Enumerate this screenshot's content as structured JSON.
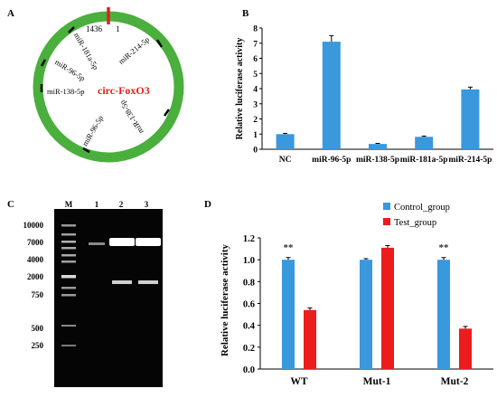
{
  "panels": {
    "a": {
      "letter": "A",
      "circle_label": "circ-FoxO3",
      "pos_start": "1",
      "pos_end": "1436",
      "sites": [
        "miR-214-5p",
        "miR-181a-5p",
        "miR-96-5p",
        "miR-138-5p",
        "miR-96-5p",
        "miR-138-5p"
      ],
      "ring_color": "#4aaf3c",
      "junction_color": "#e0201c",
      "label_color": "#e0201c"
    },
    "b": {
      "letter": "B"
    },
    "c": {
      "letter": "C",
      "marker_sizes": [
        "10000",
        "7000",
        "4000",
        "2000",
        "750",
        "500",
        "250"
      ],
      "lane_labels": [
        "M",
        "1",
        "2",
        "3"
      ]
    },
    "d": {
      "letter": "D",
      "sig_marks": [
        "**",
        "**"
      ]
    }
  },
  "chart_data": [
    {
      "type": "bar",
      "categories": [
        "NC",
        "miR-96-5p",
        "miR-138-5p",
        "miR-181a-5p",
        "miR-214-5p"
      ],
      "values": [
        1.0,
        7.1,
        0.35,
        0.82,
        3.95
      ],
      "errors": [
        0.05,
        0.4,
        0.04,
        0.05,
        0.15
      ],
      "ylabel": "Relative luciferase activity",
      "ylim": [
        0,
        8
      ],
      "yticks": [
        0,
        1,
        2,
        3,
        4,
        5,
        6,
        7,
        8
      ],
      "color": "#3a98dc"
    },
    {
      "type": "bar",
      "categories": [
        "WT",
        "Mut-1",
        "Mut-2"
      ],
      "series": [
        {
          "name": "Control_group",
          "values": [
            1.0,
            1.0,
            1.0
          ],
          "errors": [
            0.02,
            0.01,
            0.02
          ],
          "color": "#3a98dc"
        },
        {
          "name": "Test_group",
          "values": [
            0.54,
            1.11,
            0.37
          ],
          "errors": [
            0.02,
            0.02,
            0.02
          ],
          "color": "#ec1c1c"
        }
      ],
      "ylabel": "Relative luciferase activity",
      "ylim": [
        0,
        1.2
      ],
      "yticks": [
        "0.0",
        "0.2",
        "0.4",
        "0.6",
        "0.8",
        "1.0",
        "1.2"
      ],
      "legend": "top-right"
    }
  ]
}
